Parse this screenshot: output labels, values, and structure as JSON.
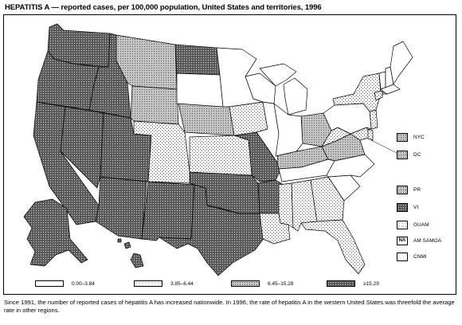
{
  "title": "HEPATITIS A — reported cases, per 100,000 population, United States and territories, 1996",
  "legend": {
    "items": [
      {
        "label": "0.00–3.84",
        "pattern": "white"
      },
      {
        "label": "3.85–6.44",
        "pattern": "light-dots"
      },
      {
        "label": "6.45–15.28",
        "pattern": "medium-dots"
      },
      {
        "label": "≥15.29",
        "pattern": "dense-dark"
      }
    ]
  },
  "territories": [
    {
      "label": "NYC",
      "pattern": "medium-dots",
      "box_text": ""
    },
    {
      "label": "DC",
      "pattern": "medium-dots",
      "box_text": ""
    },
    {
      "label": "PR",
      "pattern": "medium-dots",
      "box_text": ""
    },
    {
      "label": "VI",
      "pattern": "dense-dark",
      "box_text": ""
    },
    {
      "label": "GUAM",
      "pattern": "light-dots",
      "box_text": ""
    },
    {
      "label": "AM SAMOA",
      "pattern": "white",
      "box_text": "NA"
    },
    {
      "label": "CNMI",
      "pattern": "white",
      "box_text": ""
    }
  ],
  "caption": "Since 1991, the number of reported cases of hepatitis A has increased nationwide. In 1996, the rate of hepatitis A in the western United States was threefold the average rate in other regions.",
  "colors": {
    "ink": "#000000",
    "background": "#ffffff",
    "dark_fill": "#5a5a5a",
    "medium_fill": "#bdbdbd"
  }
}
